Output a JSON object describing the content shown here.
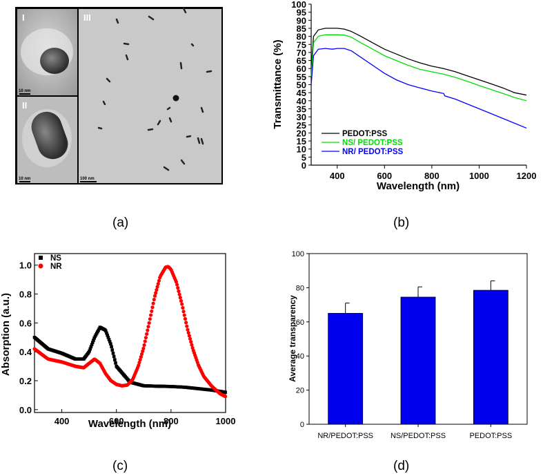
{
  "panel_labels": [
    "(a)",
    "(b)",
    "(c)",
    "(d)"
  ],
  "tem": {
    "insets": [
      "I",
      "II",
      "III"
    ],
    "scale_bars": [
      "10 nm",
      "10 nm",
      "100 nm"
    ]
  },
  "chart_data": [
    {
      "id": "b",
      "type": "line",
      "xlabel": "Wavelength (nm)",
      "ylabel": "Transmittance (%)",
      "xlim": [
        290,
        1200
      ],
      "ylim": [
        0,
        100
      ],
      "xticks": [
        400,
        600,
        800,
        1000,
        1200
      ],
      "yticks": [
        0,
        5,
        10,
        15,
        20,
        25,
        30,
        35,
        40,
        45,
        50,
        55,
        60,
        65,
        70,
        75,
        80,
        85,
        90,
        95,
        100
      ],
      "legend_position": "bottom-left",
      "grid": false,
      "series": [
        {
          "name": "PEDOT:PSS",
          "color": "#000000",
          "x": [
            290,
            300,
            320,
            350,
            400,
            430,
            460,
            500,
            550,
            600,
            650,
            700,
            750,
            800,
            850,
            900,
            950,
            1000,
            1050,
            1100,
            1150,
            1200
          ],
          "y": [
            60,
            80,
            84,
            85,
            85,
            84.5,
            83,
            80,
            76,
            72,
            69,
            66,
            63.5,
            61.5,
            60,
            58,
            55.5,
            53,
            50.5,
            48,
            45,
            43.5
          ]
        },
        {
          "name": "NS/ PEDOT:PSS",
          "color": "#00dd00",
          "x": [
            290,
            300,
            320,
            350,
            400,
            430,
            460,
            500,
            550,
            600,
            650,
            700,
            750,
            800,
            850,
            900,
            950,
            1000,
            1050,
            1100,
            1150,
            1200
          ],
          "y": [
            55,
            76,
            80,
            81,
            81,
            80.8,
            79.5,
            76,
            72,
            68,
            65,
            62,
            59.5,
            58,
            56.5,
            54.5,
            52,
            49.5,
            47,
            44.5,
            42,
            40
          ]
        },
        {
          "name": "NR/ PEDOT:PSS",
          "color": "#0000ff",
          "x": [
            290,
            300,
            320,
            350,
            380,
            400,
            430,
            460,
            500,
            550,
            600,
            650,
            700,
            750,
            800,
            850,
            855,
            900,
            950,
            1000,
            1050,
            1100,
            1150,
            1200
          ],
          "y": [
            50,
            68,
            72,
            72.5,
            72,
            72.5,
            72.5,
            71,
            67,
            62,
            57,
            53,
            50,
            48,
            46,
            44.5,
            43,
            41,
            38,
            35,
            32,
            29,
            26,
            23
          ]
        }
      ]
    },
    {
      "id": "c",
      "type": "scatter",
      "xlabel": "Wavelength (nm)",
      "ylabel": "Absorption (a.u.)",
      "xlim": [
        300,
        1000
      ],
      "ylim": [
        -0.02,
        1.08
      ],
      "xticks": [
        400,
        600,
        800,
        1000
      ],
      "yticks": [
        0.0,
        0.2,
        0.4,
        0.6,
        0.8,
        1.0
      ],
      "legend_position": "top-left",
      "grid": false,
      "series": [
        {
          "name": "NS",
          "color": "#000000",
          "marker": "square",
          "x": [
            300,
            350,
            400,
            450,
            480,
            500,
            520,
            540,
            560,
            580,
            600,
            650,
            700,
            750,
            800,
            850,
            900,
            950,
            1000
          ],
          "y": [
            0.5,
            0.42,
            0.39,
            0.35,
            0.35,
            0.4,
            0.5,
            0.57,
            0.55,
            0.45,
            0.3,
            0.19,
            0.165,
            0.162,
            0.16,
            0.155,
            0.145,
            0.135,
            0.12
          ]
        },
        {
          "name": "NR",
          "color": "#ff0000",
          "marker": "circle",
          "x": [
            300,
            350,
            400,
            450,
            480,
            500,
            520,
            540,
            560,
            580,
            600,
            620,
            640,
            660,
            680,
            700,
            720,
            740,
            760,
            780,
            790,
            800,
            820,
            840,
            860,
            880,
            900,
            920,
            950,
            980,
            1000
          ],
          "y": [
            0.42,
            0.35,
            0.33,
            0.3,
            0.29,
            0.32,
            0.35,
            0.32,
            0.25,
            0.2,
            0.175,
            0.165,
            0.17,
            0.21,
            0.3,
            0.43,
            0.6,
            0.78,
            0.92,
            0.985,
            0.99,
            0.97,
            0.88,
            0.73,
            0.56,
            0.42,
            0.31,
            0.23,
            0.16,
            0.11,
            0.09
          ]
        }
      ]
    },
    {
      "id": "d",
      "type": "bar",
      "ylabel": "Average transparency",
      "categories": [
        "NR/PEDOT:PSS",
        "NS/PEDOT:PSS",
        "PEDOT:PSS"
      ],
      "values": [
        65,
        74.5,
        78.5
      ],
      "errors": [
        6,
        6,
        5.5
      ],
      "ylim": [
        0,
        100
      ],
      "yticks": [
        0,
        20,
        40,
        60,
        80,
        100
      ],
      "color": "#0000ee",
      "grid": false
    }
  ]
}
